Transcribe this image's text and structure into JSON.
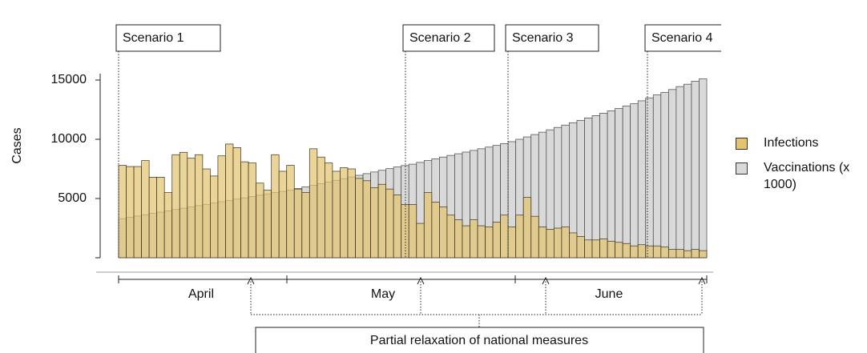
{
  "chart_data": {
    "type": "bar",
    "y_label": "Cases",
    "ylim": [
      0,
      15000
    ],
    "yticks": [
      5000,
      10000,
      15000
    ],
    "series": [
      {
        "name": "Infections",
        "color": "#e3c470",
        "values": [
          7800,
          7700,
          7700,
          8200,
          6800,
          6800,
          5500,
          8700,
          8900,
          8400,
          8700,
          7500,
          6900,
          8600,
          9600,
          9300,
          8100,
          8000,
          6300,
          5700,
          8700,
          7300,
          7800,
          5800,
          5500,
          9200,
          8500,
          8000,
          7300,
          7600,
          7500,
          6700,
          6500,
          5900,
          6200,
          5800,
          5300,
          4500,
          4500,
          2900,
          5500,
          4700,
          4300,
          3600,
          3200,
          2700,
          3200,
          2700,
          2600,
          3000,
          3600,
          2600,
          3600,
          5100,
          3500,
          2600,
          2400,
          2500,
          2600,
          2100,
          1800,
          1500,
          1500,
          1600,
          1400,
          1300,
          1200,
          1000,
          1100,
          1000,
          1000,
          900,
          700,
          700,
          600,
          700,
          600
        ]
      },
      {
        "name": "Vaccinations (x 1000)",
        "color": "#d9d9d9",
        "values": [
          3300,
          3410,
          3520,
          3630,
          3740,
          3850,
          3960,
          4070,
          4180,
          4290,
          4400,
          4510,
          4620,
          4730,
          4840,
          4950,
          5060,
          5170,
          5280,
          5390,
          5500,
          5600,
          5700,
          5840,
          5980,
          6120,
          6260,
          6400,
          6540,
          6680,
          6820,
          6960,
          7100,
          7240,
          7380,
          7520,
          7660,
          7780,
          7900,
          8050,
          8200,
          8350,
          8500,
          8640,
          8780,
          8920,
          9060,
          9200,
          9340,
          9480,
          9640,
          9800,
          10000,
          10200,
          10400,
          10600,
          10800,
          11000,
          11200,
          11400,
          11600,
          11800,
          12000,
          12200,
          12400,
          12600,
          12800,
          13000,
          13250,
          13500,
          13750,
          13950,
          14200,
          14450,
          14650,
          14900,
          15100
        ]
      }
    ],
    "annotations": {
      "scenarios": [
        "Scenario 1",
        "Scenario 2",
        "Scenario 3",
        "Scenario 4"
      ],
      "months": [
        "April",
        "May",
        "June"
      ],
      "note": "Partial relaxation of national measures"
    }
  }
}
